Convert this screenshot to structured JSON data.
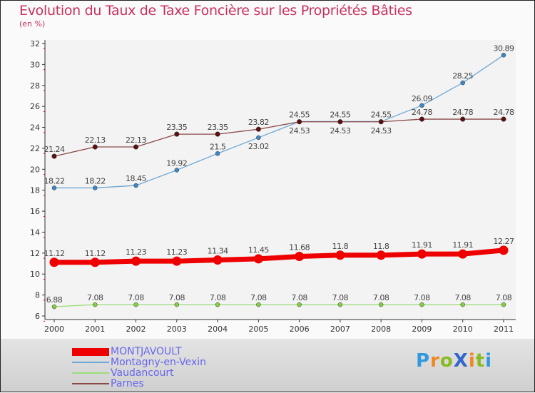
{
  "chart_data": {
    "type": "line",
    "title": "Evolution du Taux de Taxe Foncière sur les Propriétés Bâties",
    "subtitle": "(en %)",
    "x": [
      "2000",
      "2001",
      "2002",
      "2003",
      "2004",
      "2005",
      "2006",
      "2007",
      "2008",
      "2009",
      "2010",
      "2011"
    ],
    "ylim": [
      6,
      32
    ],
    "yticks": [
      6,
      8,
      10,
      12,
      14,
      16,
      18,
      20,
      22,
      24,
      26,
      28,
      30,
      32
    ],
    "series": [
      {
        "name": "MONTJAVOULT",
        "color": "#ee0000",
        "values": [
          11.12,
          11.12,
          11.23,
          11.23,
          11.34,
          11.45,
          11.68,
          11.8,
          11.8,
          11.91,
          11.91,
          12.27
        ]
      },
      {
        "name": "Montagny-en-Vexin",
        "color": "#6fa8d6",
        "values": [
          18.22,
          18.22,
          18.45,
          19.92,
          21.5,
          23.02,
          24.55,
          24.55,
          24.55,
          26.09,
          28.25,
          30.89
        ]
      },
      {
        "name": "Vaudancourt",
        "color": "#99dd77",
        "values": [
          6.88,
          7.08,
          7.08,
          7.08,
          7.08,
          7.08,
          7.08,
          7.08,
          7.08,
          7.08,
          7.08,
          7.08
        ]
      },
      {
        "name": "Parnes",
        "color": "#8b4a4a",
        "values": [
          21.24,
          22.13,
          22.13,
          23.35,
          23.35,
          23.82,
          24.53,
          24.53,
          24.53,
          24.78,
          24.78,
          24.78
        ]
      }
    ]
  },
  "logo": "ProXiti"
}
